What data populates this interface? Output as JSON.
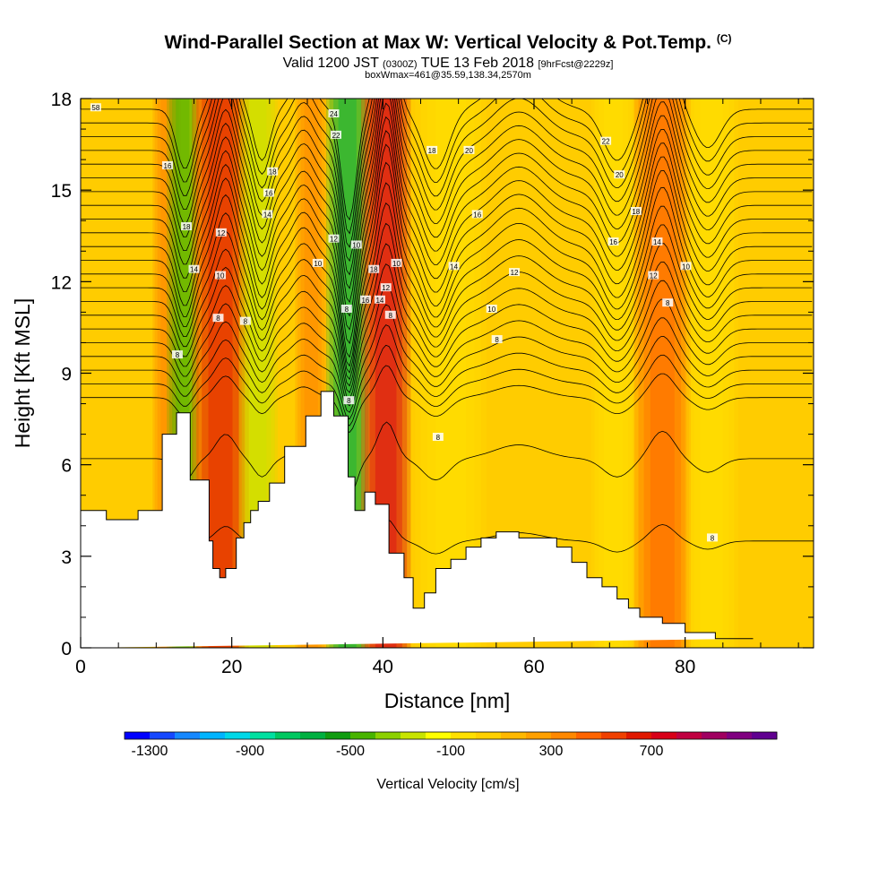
{
  "header": {
    "title": "Wind-Parallel Section at Max W: Vertical Velocity & Pot.Temp.",
    "title_tag": "(C)",
    "subtitle_main": "Valid 1200 JST",
    "subtitle_utc": "(0300Z)",
    "subtitle_date": "TUE 13 Feb 2018",
    "subtitle_fcst": "[9hrFcst@2229z]",
    "subtitle_box": "boxWmax=461@35.59,138.34,2570m"
  },
  "chart_data": {
    "type": "heatmap",
    "xlabel": "Distance [nm]",
    "ylabel": "Height [Kft MSL]",
    "xlim": [
      0,
      97
    ],
    "ylim": [
      0,
      18
    ],
    "x_ticks": [
      0,
      20,
      40,
      60,
      80
    ],
    "y_ticks": [
      0,
      3,
      6,
      9,
      12,
      15,
      18
    ],
    "x_tick_labels": [
      "0",
      "20",
      "40",
      "60",
      "80"
    ],
    "y_tick_labels": [
      "0",
      "3",
      "6",
      "9",
      "12",
      "15",
      "18"
    ],
    "terrain": {
      "x": [
        0,
        3.4,
        3.4,
        7.6,
        7.6,
        10.8,
        10.8,
        12.7,
        12.7,
        14.5,
        14.5,
        17,
        17,
        17.5,
        17.5,
        18.4,
        18.4,
        19.2,
        19.2,
        20.6,
        20.6,
        21.6,
        21.6,
        22.5,
        22.5,
        23.5,
        23.5,
        25,
        25,
        27,
        27,
        29.8,
        29.8,
        31.8,
        31.8,
        33.5,
        33.5,
        35.4,
        35.4,
        36.3,
        36.3,
        37.6,
        37.6,
        39,
        39,
        40.8,
        40.8,
        42.8,
        42.8,
        44,
        44,
        45.5,
        45.5,
        47,
        47,
        49,
        49,
        51,
        51,
        53,
        53,
        55,
        55,
        58,
        58,
        63,
        63,
        65,
        65,
        67,
        67,
        69,
        69,
        71,
        71,
        72.5,
        72.5,
        74,
        74,
        77,
        77,
        80,
        80,
        84,
        84,
        89,
        89,
        97
      ],
      "height_kft": [
        4.5,
        4.5,
        4.2,
        4.2,
        4.5,
        4.5,
        7.0,
        7.0,
        7.7,
        7.7,
        5.5,
        5.5,
        3.5,
        3.5,
        2.6,
        2.6,
        2.3,
        2.3,
        2.6,
        2.6,
        3.6,
        3.6,
        4.1,
        4.1,
        4.5,
        4.5,
        4.8,
        4.8,
        5.4,
        5.4,
        6.6,
        6.6,
        7.6,
        7.6,
        8.4,
        8.4,
        7.6,
        7.6,
        5.6,
        5.6,
        4.5,
        4.5,
        5.1,
        5.1,
        4.7,
        4.7,
        3.1,
        3.1,
        2.3,
        2.3,
        1.3,
        1.3,
        1.8,
        1.8,
        2.6,
        2.6,
        2.9,
        2.9,
        3.3,
        3.3,
        3.6,
        3.6,
        3.8,
        3.8,
        3.6,
        3.6,
        3.3,
        3.3,
        2.8,
        2.8,
        2.3,
        2.3,
        2.0,
        2.0,
        1.6,
        1.6,
        1.3,
        1.3,
        1.0,
        1.0,
        0.8,
        0.8,
        0.5,
        0.5,
        0.3,
        0.3
      ]
    },
    "vertical_velocity_bands": [
      {
        "x": 11.4,
        "width": 1.6,
        "value": 300
      },
      {
        "x": 13.5,
        "width": 1.8,
        "value": -500
      },
      {
        "x": 18.5,
        "width": 3.2,
        "value": 600
      },
      {
        "x": 23.5,
        "width": 2.2,
        "value": -300
      },
      {
        "x": 30.5,
        "width": 1.8,
        "value": 300
      },
      {
        "x": 35.3,
        "width": 2.4,
        "value": -700
      },
      {
        "x": 40.4,
        "width": 2.8,
        "value": 750
      },
      {
        "x": 49,
        "width": 4,
        "value": -100
      },
      {
        "x": 70.5,
        "width": 2.5,
        "value": -100
      },
      {
        "x": 77,
        "width": 3.2,
        "value": 400
      },
      {
        "x": 83.5,
        "width": 3,
        "value": -100
      }
    ],
    "theta_contour_labels": [
      {
        "x": 2,
        "y": 17.7,
        "text": "58"
      },
      {
        "x": 11.5,
        "y": 15.8,
        "text": "16"
      },
      {
        "x": 14,
        "y": 13.8,
        "text": "18"
      },
      {
        "x": 15,
        "y": 12.4,
        "text": "14"
      },
      {
        "x": 18.6,
        "y": 13.6,
        "text": "12"
      },
      {
        "x": 18.5,
        "y": 12.2,
        "text": "10"
      },
      {
        "x": 18.2,
        "y": 10.8,
        "text": "8"
      },
      {
        "x": 21.8,
        "y": 10.7,
        "text": "8"
      },
      {
        "x": 12.8,
        "y": 9.6,
        "text": "8"
      },
      {
        "x": 25.4,
        "y": 15.6,
        "text": "18"
      },
      {
        "x": 24.9,
        "y": 14.9,
        "text": "16"
      },
      {
        "x": 24.7,
        "y": 14.2,
        "text": "14"
      },
      {
        "x": 33.5,
        "y": 17.5,
        "text": "24"
      },
      {
        "x": 33.8,
        "y": 16.8,
        "text": "22"
      },
      {
        "x": 33.5,
        "y": 13.4,
        "text": "12"
      },
      {
        "x": 31.4,
        "y": 12.6,
        "text": "10"
      },
      {
        "x": 36.5,
        "y": 13.2,
        "text": "10"
      },
      {
        "x": 35.2,
        "y": 11.1,
        "text": "8"
      },
      {
        "x": 37.7,
        "y": 11.4,
        "text": "16"
      },
      {
        "x": 38.8,
        "y": 12.4,
        "text": "18"
      },
      {
        "x": 40.4,
        "y": 11.8,
        "text": "12"
      },
      {
        "x": 39.6,
        "y": 11.4,
        "text": "14"
      },
      {
        "x": 41.8,
        "y": 12.6,
        "text": "10"
      },
      {
        "x": 41,
        "y": 10.9,
        "text": "8"
      },
      {
        "x": 35.5,
        "y": 8.1,
        "text": "8"
      },
      {
        "x": 46.5,
        "y": 16.3,
        "text": "18"
      },
      {
        "x": 51.4,
        "y": 16.3,
        "text": "20"
      },
      {
        "x": 52.5,
        "y": 14.2,
        "text": "16"
      },
      {
        "x": 49.4,
        "y": 12.5,
        "text": "14"
      },
      {
        "x": 57.4,
        "y": 12.3,
        "text": "12"
      },
      {
        "x": 54.4,
        "y": 11.1,
        "text": "10"
      },
      {
        "x": 55.1,
        "y": 10.1,
        "text": "8"
      },
      {
        "x": 47.3,
        "y": 6.9,
        "text": "8"
      },
      {
        "x": 69.5,
        "y": 16.6,
        "text": "22"
      },
      {
        "x": 71.3,
        "y": 15.5,
        "text": "20"
      },
      {
        "x": 73.5,
        "y": 14.3,
        "text": "18"
      },
      {
        "x": 70.5,
        "y": 13.3,
        "text": "16"
      },
      {
        "x": 76.3,
        "y": 13.3,
        "text": "14"
      },
      {
        "x": 75.8,
        "y": 12.2,
        "text": "12"
      },
      {
        "x": 80.1,
        "y": 12.5,
        "text": "10"
      },
      {
        "x": 77.7,
        "y": 11.3,
        "text": "8"
      },
      {
        "x": 83.6,
        "y": 3.6,
        "text": "8"
      }
    ]
  },
  "colorbar": {
    "colors": [
      "#0000ff",
      "#1648ff",
      "#1688ff",
      "#00b4ff",
      "#00d8e8",
      "#00e0a0",
      "#00c860",
      "#00b040",
      "#109c10",
      "#48b400",
      "#8cd000",
      "#c8e400",
      "#ffff00",
      "#ffe000",
      "#ffd000",
      "#ffb800",
      "#ffa000",
      "#ff8800",
      "#ff6400",
      "#f04000",
      "#e01800",
      "#d80018",
      "#c00040",
      "#a00060",
      "#800080",
      "#600090"
    ],
    "labels": [
      "-1300",
      "-900",
      "-500",
      "-100",
      "300",
      "700"
    ],
    "title": "Vertical Velocity [cm/s]"
  }
}
